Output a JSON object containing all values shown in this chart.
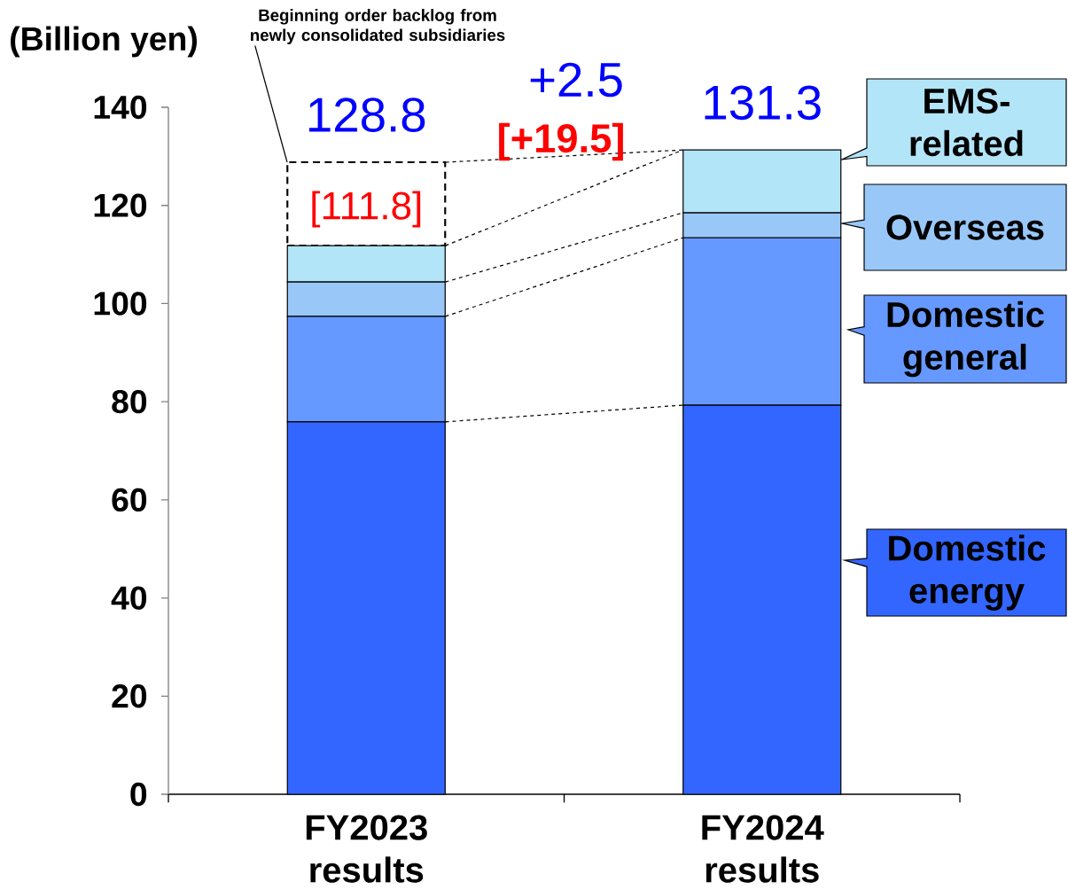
{
  "chart_data": {
    "type": "bar",
    "stacked": true,
    "ylabel": "(Billion yen)",
    "categories": [
      "FY2023 results",
      "FY2024 results"
    ],
    "series": [
      {
        "name": "Domestic energy",
        "color": "#3366ff",
        "values": [
          75.9,
          79.3
        ]
      },
      {
        "name": "Domestic general",
        "color": "#6699ff",
        "values": [
          21.5,
          34.1
        ]
      },
      {
        "name": "Overseas",
        "color": "#99c8f8",
        "values": [
          7.0,
          5.1
        ]
      },
      {
        "name": "EMS-related",
        "color": "#b3e5f8",
        "values": [
          7.4,
          12.8
        ]
      },
      {
        "name": "Beginning order backlog from newly consolidated subsidiaries",
        "color": "#ffffff",
        "line_style": "dashed",
        "values": [
          17.0,
          null
        ]
      }
    ],
    "totals": [
      "128.8",
      "131.3"
    ],
    "annotations": [
      {
        "text": "[111.8]",
        "x": "FY2023 results",
        "y": 111.8
      },
      "+2.5",
      "[+19.5]"
    ],
    "ylim": [
      0,
      140
    ],
    "yticks": [
      0,
      20,
      40,
      60,
      80,
      100,
      120,
      140
    ]
  }
}
